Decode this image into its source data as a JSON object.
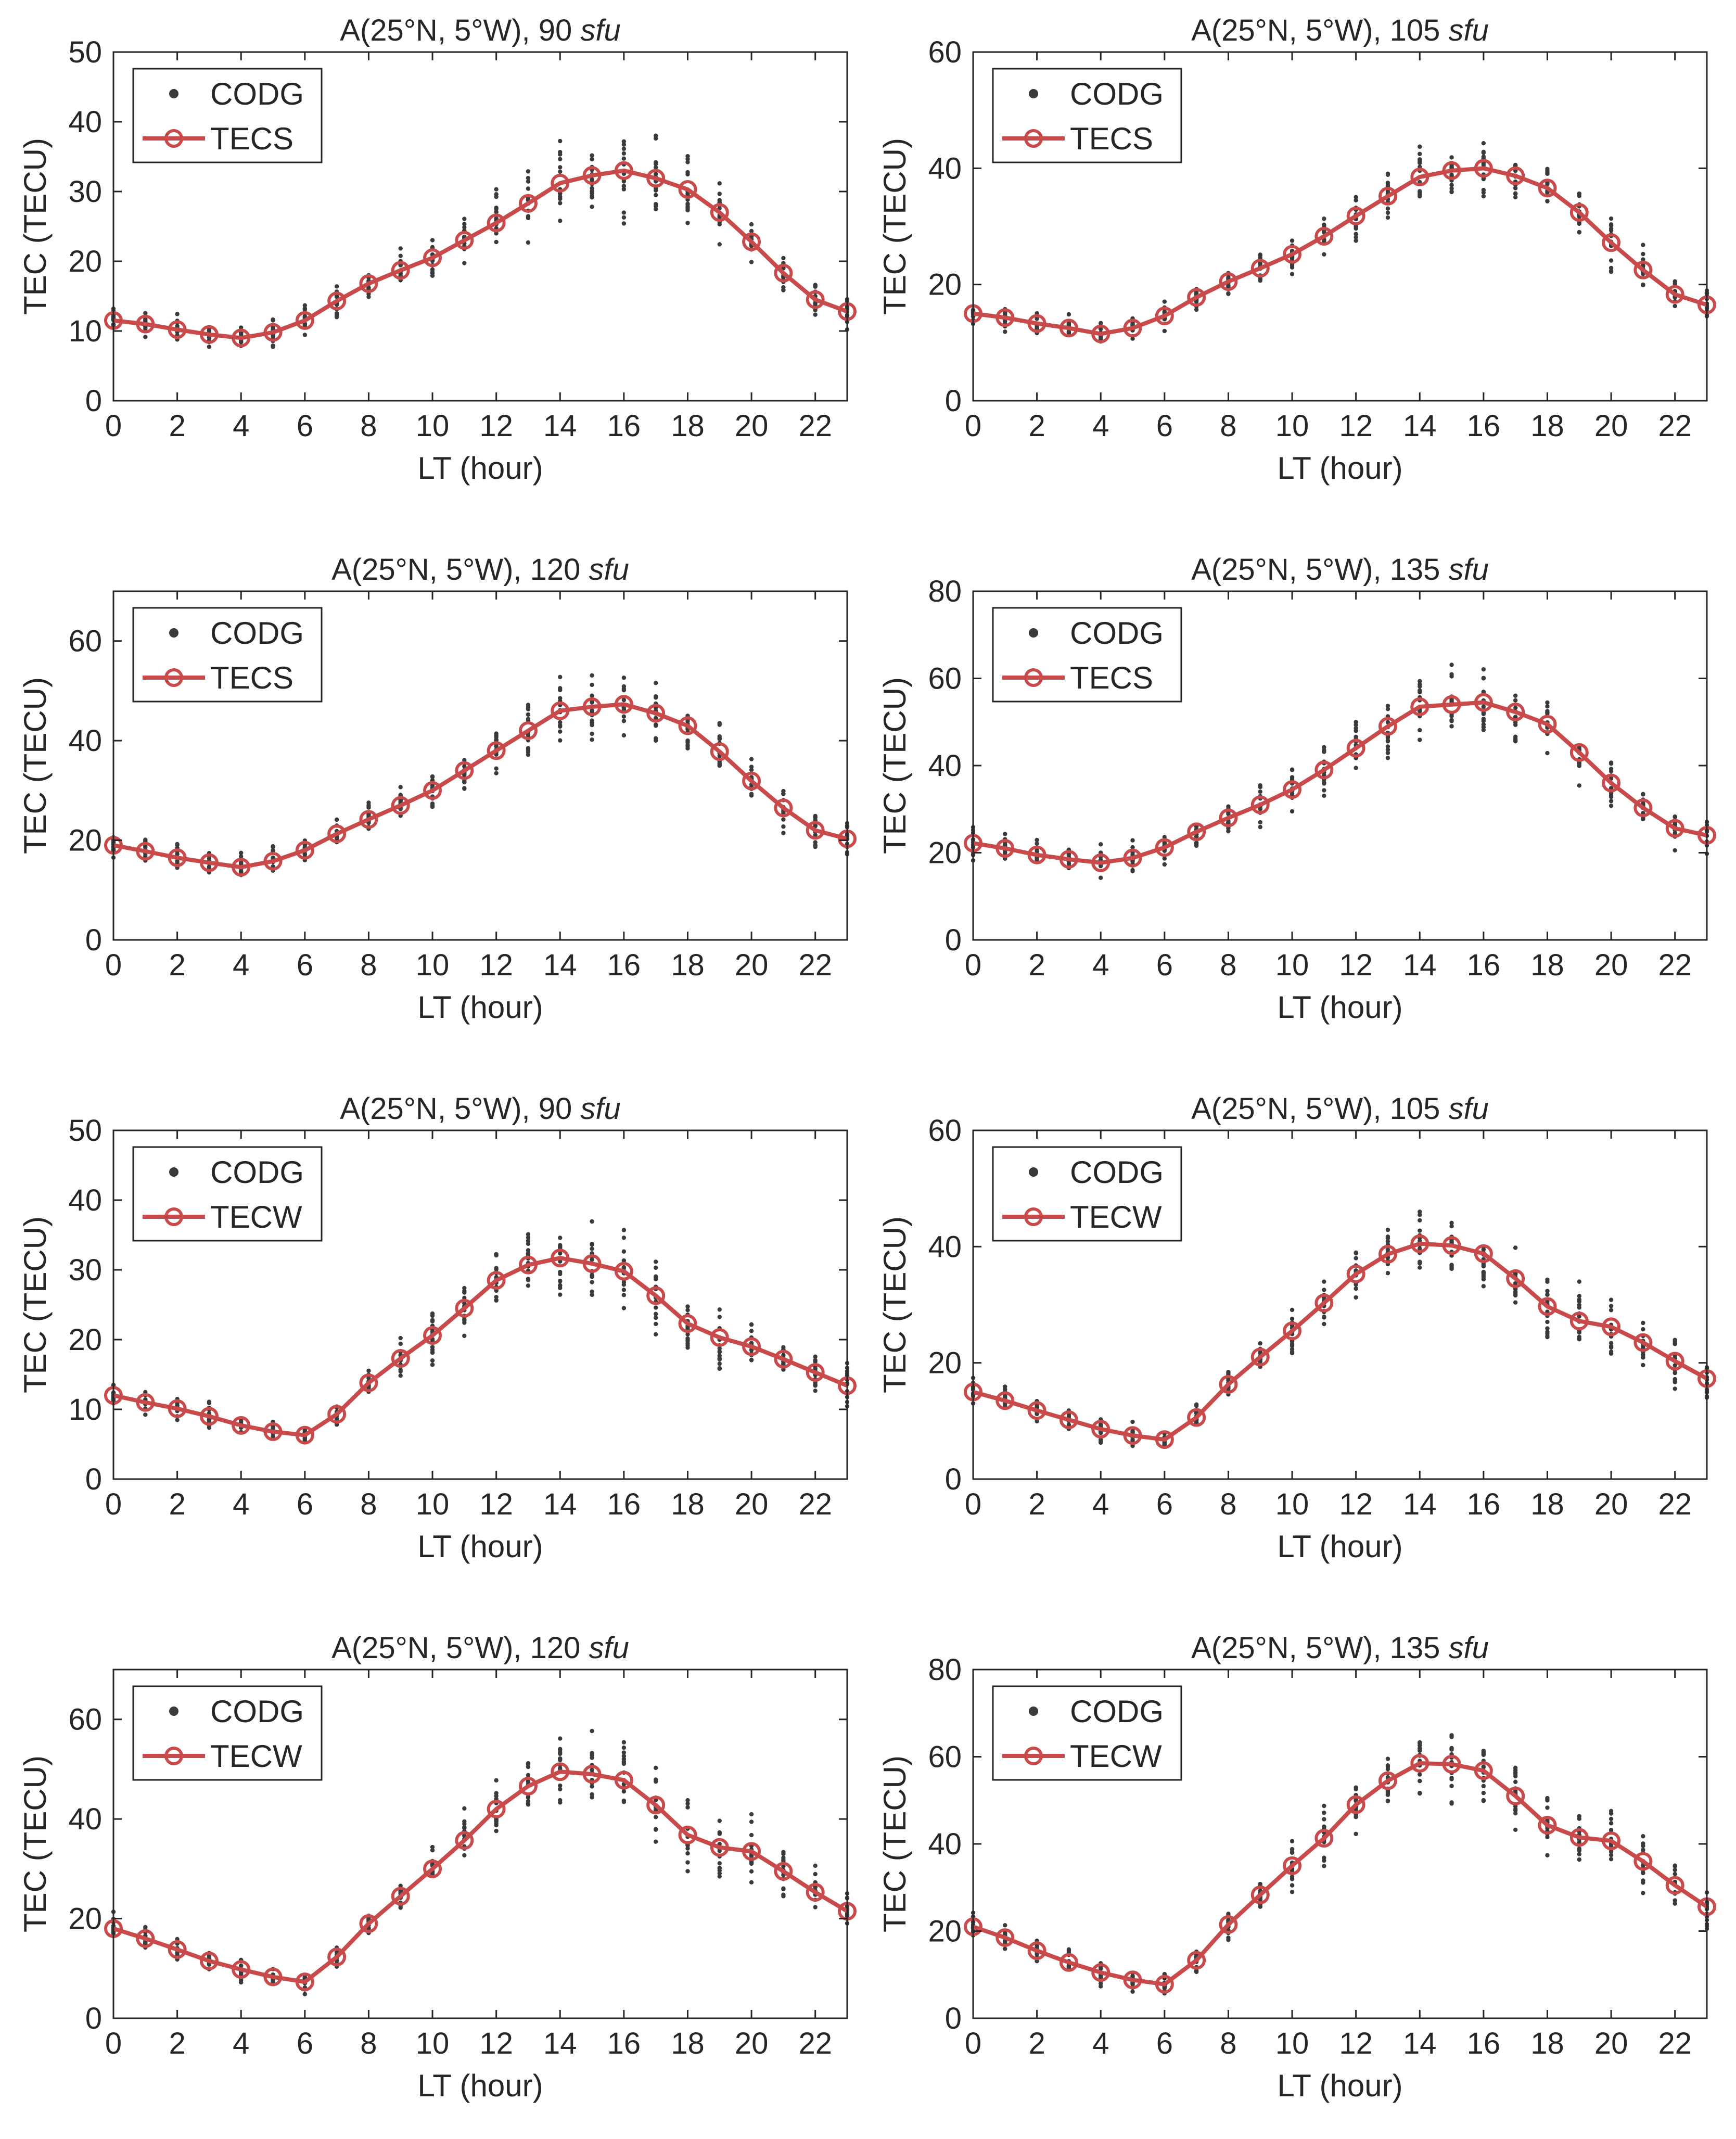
{
  "figure": {
    "name": "tec-diurnal-variation-comparison"
  },
  "chart_data": [
    {
      "type": "line",
      "title": "A(25°N, 5°W), 90 ",
      "title_italic": "sfu",
      "xlabel": "LT (hour)",
      "ylabel": "TEC (TECU)",
      "xlim": [
        0,
        23
      ],
      "ylim": [
        0,
        50
      ],
      "xticks": [
        0,
        2,
        4,
        6,
        8,
        10,
        12,
        14,
        16,
        18,
        20,
        22
      ],
      "yticks": [
        0,
        10,
        20,
        30,
        40,
        50
      ],
      "legend": {
        "location": "top-left",
        "entries": [
          "CODG",
          "TECS"
        ]
      },
      "scatter": {
        "name": "CODG",
        "mean": [
          11.5,
          11,
          10.2,
          9.5,
          9,
          9.8,
          11.5,
          14.3,
          16.8,
          18.7,
          20.5,
          23,
          25.5,
          28.3,
          31.2,
          32.3,
          33,
          31.9,
          30.3,
          27,
          22.8,
          18.3,
          14.5,
          12.8
        ],
        "spread": [
          3,
          3,
          3,
          3,
          3,
          3,
          3,
          3,
          3,
          3.5,
          4,
          5,
          6,
          7,
          8,
          8,
          8,
          8,
          7,
          6,
          5,
          4,
          4,
          3
        ]
      },
      "series": [
        {
          "name": "TECS",
          "x": [
            0,
            1,
            2,
            3,
            4,
            5,
            6,
            7,
            8,
            9,
            10,
            11,
            12,
            13,
            14,
            15,
            16,
            17,
            18,
            19,
            20,
            21,
            22,
            23
          ],
          "values": [
            11.5,
            11,
            10.2,
            9.5,
            9,
            9.8,
            11.5,
            14.3,
            16.8,
            18.7,
            20.5,
            23,
            25.5,
            28.3,
            31.2,
            32.3,
            33,
            31.9,
            30.3,
            27,
            22.8,
            18.3,
            14.5,
            12.8
          ]
        }
      ]
    },
    {
      "type": "line",
      "title": "A(25°N, 5°W), 105 ",
      "title_italic": "sfu",
      "xlabel": "LT (hour)",
      "ylabel": "TEC (TECU)",
      "xlim": [
        0,
        23
      ],
      "ylim": [
        0,
        60
      ],
      "xticks": [
        0,
        2,
        4,
        6,
        8,
        10,
        12,
        14,
        16,
        18,
        20,
        22
      ],
      "yticks": [
        0,
        20,
        40,
        60
      ],
      "legend": {
        "location": "top-left",
        "entries": [
          "CODG",
          "TECS"
        ]
      },
      "scatter": {
        "name": "CODG",
        "mean": [
          15,
          14.3,
          13.3,
          12.5,
          11.5,
          12.5,
          14.6,
          17.8,
          20.5,
          22.8,
          25.2,
          28.3,
          31.8,
          35.2,
          38.5,
          39.6,
          40,
          38.7,
          36.6,
          32.4,
          27.2,
          22.5,
          18.3,
          16.5
        ],
        "spread": [
          3,
          3,
          3,
          3,
          3,
          3,
          3,
          3,
          3,
          4,
          5,
          5,
          6,
          6,
          7,
          6,
          6,
          6,
          6,
          6,
          6,
          5,
          4,
          4
        ]
      },
      "series": [
        {
          "name": "TECS",
          "x": [
            0,
            1,
            2,
            3,
            4,
            5,
            6,
            7,
            8,
            9,
            10,
            11,
            12,
            13,
            14,
            15,
            16,
            17,
            18,
            19,
            20,
            21,
            22,
            23
          ],
          "values": [
            15,
            14.3,
            13.3,
            12.5,
            11.5,
            12.5,
            14.6,
            17.8,
            20.5,
            22.8,
            25.2,
            28.3,
            31.8,
            35.2,
            38.5,
            39.6,
            40,
            38.7,
            36.6,
            32.4,
            27.2,
            22.5,
            18.3,
            16.5
          ]
        }
      ]
    },
    {
      "type": "line",
      "title": "A(25°N, 5°W), 120 ",
      "title_italic": "sfu",
      "xlabel": "LT (hour)",
      "ylabel": "TEC (TECU)",
      "xlim": [
        0,
        23
      ],
      "ylim": [
        0,
        70
      ],
      "xticks": [
        0,
        2,
        4,
        6,
        8,
        10,
        12,
        14,
        16,
        18,
        20,
        22
      ],
      "yticks": [
        0,
        20,
        40,
        60
      ],
      "legend": {
        "location": "top-left",
        "entries": [
          "CODG",
          "TECS"
        ]
      },
      "scatter": {
        "name": "CODG",
        "mean": [
          19,
          17.8,
          16.5,
          15.5,
          14.6,
          15.8,
          18,
          21.3,
          24.2,
          27,
          30,
          34,
          38,
          42,
          46,
          46.8,
          47.3,
          45.5,
          43,
          37.8,
          31.9,
          26.5,
          22,
          20.3
        ],
        "spread": [
          4,
          4,
          4,
          4,
          4,
          4,
          4,
          4,
          4,
          5,
          6,
          7,
          8,
          9,
          10,
          10,
          10,
          10,
          9,
          8,
          7,
          6,
          6,
          5
        ]
      },
      "series": [
        {
          "name": "TECS",
          "x": [
            0,
            1,
            2,
            3,
            4,
            5,
            6,
            7,
            8,
            9,
            10,
            11,
            12,
            13,
            14,
            15,
            16,
            17,
            18,
            19,
            20,
            21,
            22,
            23
          ],
          "values": [
            19,
            17.8,
            16.5,
            15.5,
            14.6,
            15.8,
            18,
            21.3,
            24.2,
            27,
            30,
            34,
            38,
            42,
            46,
            46.8,
            47.3,
            45.5,
            43,
            37.8,
            31.9,
            26.5,
            22,
            20.3
          ]
        }
      ]
    },
    {
      "type": "line",
      "title": "A(25°N, 5°W), 135 ",
      "title_italic": "sfu",
      "xlabel": "LT (hour)",
      "ylabel": "TEC (TECU)",
      "xlim": [
        0,
        23
      ],
      "ylim": [
        0,
        80
      ],
      "xticks": [
        0,
        2,
        4,
        6,
        8,
        10,
        12,
        14,
        16,
        18,
        20,
        22
      ],
      "yticks": [
        0,
        20,
        40,
        60,
        80
      ],
      "legend": {
        "location": "top-left",
        "entries": [
          "CODG",
          "TECS"
        ]
      },
      "scatter": {
        "name": "CODG",
        "mean": [
          22.2,
          21,
          19.5,
          18.5,
          17.7,
          18.8,
          21.2,
          24.8,
          28,
          31,
          34.5,
          39,
          44,
          49,
          53.5,
          54,
          54.5,
          52.3,
          49.5,
          43,
          36,
          30.3,
          25.6,
          24
        ],
        "spread": [
          5,
          5,
          5,
          5,
          5,
          5,
          5,
          5,
          5,
          6,
          7,
          8,
          9,
          10,
          11,
          11,
          11,
          10,
          10,
          9,
          8,
          7,
          6,
          6
        ]
      },
      "series": [
        {
          "name": "TECS",
          "x": [
            0,
            1,
            2,
            3,
            4,
            5,
            6,
            7,
            8,
            9,
            10,
            11,
            12,
            13,
            14,
            15,
            16,
            17,
            18,
            19,
            20,
            21,
            22,
            23
          ],
          "values": [
            22.2,
            21,
            19.5,
            18.5,
            17.7,
            18.8,
            21.2,
            24.8,
            28,
            31,
            34.5,
            39,
            44,
            49,
            53.5,
            54,
            54.5,
            52.3,
            49.5,
            43,
            36,
            30.3,
            25.6,
            24
          ]
        }
      ]
    },
    {
      "type": "line",
      "title": "A(25°N, 5°W), 90 ",
      "title_italic": "sfu",
      "xlabel": "LT (hour)",
      "ylabel": "TEC (TECU)",
      "xlim": [
        0,
        23
      ],
      "ylim": [
        0,
        50
      ],
      "xticks": [
        0,
        2,
        4,
        6,
        8,
        10,
        12,
        14,
        16,
        18,
        20,
        22
      ],
      "yticks": [
        0,
        10,
        20,
        30,
        40,
        50
      ],
      "legend": {
        "location": "top-left",
        "entries": [
          "CODG",
          "TECW"
        ]
      },
      "scatter": {
        "name": "CODG",
        "mean": [
          12,
          11,
          10.1,
          9,
          7.7,
          6.8,
          6.3,
          9.3,
          13.8,
          17.3,
          20.6,
          24.5,
          28.5,
          30.7,
          31.7,
          30.9,
          29.8,
          26.3,
          22.3,
          20.3,
          19,
          17.2,
          15.3,
          13.4
        ],
        "spread": [
          2.5,
          2.5,
          2.5,
          2.5,
          2,
          2,
          2,
          2.5,
          3,
          4,
          5,
          6,
          7,
          7,
          8,
          8,
          8,
          8,
          8,
          7,
          6,
          5,
          4,
          4
        ]
      },
      "series": [
        {
          "name": "TECW",
          "x": [
            0,
            1,
            2,
            3,
            4,
            5,
            6,
            7,
            8,
            9,
            10,
            11,
            12,
            13,
            14,
            15,
            16,
            17,
            18,
            19,
            20,
            21,
            22,
            23
          ],
          "values": [
            12,
            11,
            10.1,
            9,
            7.7,
            6.8,
            6.3,
            9.3,
            13.8,
            17.3,
            20.6,
            24.5,
            28.5,
            30.7,
            31.7,
            30.9,
            29.8,
            26.3,
            22.3,
            20.3,
            19,
            17.2,
            15.3,
            13.4
          ]
        }
      ]
    },
    {
      "type": "line",
      "title": "A(25°N, 5°W), 105 ",
      "title_italic": "sfu",
      "xlabel": "LT (hour)",
      "ylabel": "TEC (TECU)",
      "xlim": [
        0,
        23
      ],
      "ylim": [
        0,
        60
      ],
      "xticks": [
        0,
        2,
        4,
        6,
        8,
        10,
        12,
        14,
        16,
        18,
        20,
        22
      ],
      "yticks": [
        0,
        20,
        40,
        60
      ],
      "legend": {
        "location": "top-left",
        "entries": [
          "CODG",
          "TECW"
        ]
      },
      "scatter": {
        "name": "CODG",
        "mean": [
          15,
          13.5,
          11.8,
          10.2,
          8.6,
          7.5,
          6.8,
          10.6,
          16.3,
          21,
          25.5,
          30.3,
          35.3,
          38.7,
          40.5,
          40.2,
          38.8,
          34.5,
          29.7,
          27.2,
          26.2,
          23.5,
          20.3,
          17.3
        ],
        "spread": [
          3,
          3,
          3,
          3,
          3,
          3,
          3,
          3,
          3,
          4,
          5,
          6,
          7,
          7,
          7,
          7,
          7,
          7,
          8,
          8,
          8,
          8,
          7,
          6
        ]
      },
      "series": [
        {
          "name": "TECW",
          "x": [
            0,
            1,
            2,
            3,
            4,
            5,
            6,
            7,
            8,
            9,
            10,
            11,
            12,
            13,
            14,
            15,
            16,
            17,
            18,
            19,
            20,
            21,
            22,
            23
          ],
          "values": [
            15,
            13.5,
            11.8,
            10.2,
            8.6,
            7.5,
            6.8,
            10.6,
            16.3,
            21,
            25.5,
            30.3,
            35.3,
            38.7,
            40.5,
            40.2,
            38.8,
            34.5,
            29.7,
            27.2,
            26.2,
            23.5,
            20.3,
            17.3
          ]
        }
      ]
    },
    {
      "type": "line",
      "title": "A(25°N, 5°W), 120 ",
      "title_italic": "sfu",
      "xlabel": "LT (hour)",
      "ylabel": "TEC (TECU)",
      "xlim": [
        0,
        23
      ],
      "ylim": [
        0,
        70
      ],
      "xticks": [
        0,
        2,
        4,
        6,
        8,
        10,
        12,
        14,
        16,
        18,
        20,
        22
      ],
      "yticks": [
        0,
        20,
        40,
        60
      ],
      "legend": {
        "location": "top-left",
        "entries": [
          "CODG",
          "TECW"
        ]
      },
      "scatter": {
        "name": "CODG",
        "mean": [
          18,
          16,
          13.8,
          11.5,
          9.8,
          8.3,
          7.3,
          12.3,
          19,
          24.5,
          30,
          35.7,
          42,
          46.6,
          49.5,
          49,
          47.8,
          42.8,
          36.8,
          34.3,
          33.5,
          29.5,
          25.3,
          21.5
        ],
        "spread": [
          4,
          4,
          4,
          3.5,
          3.5,
          3,
          3,
          3.5,
          4,
          5,
          6,
          8,
          9,
          10,
          10,
          10,
          10,
          10,
          10,
          10,
          9,
          8,
          7,
          6
        ]
      },
      "series": [
        {
          "name": "TECW",
          "x": [
            0,
            1,
            2,
            3,
            4,
            5,
            6,
            7,
            8,
            9,
            10,
            11,
            12,
            13,
            14,
            15,
            16,
            17,
            18,
            19,
            20,
            21,
            22,
            23
          ],
          "values": [
            18,
            16,
            13.8,
            11.5,
            9.8,
            8.3,
            7.3,
            12.3,
            19,
            24.5,
            30,
            35.7,
            42,
            46.6,
            49.5,
            49,
            47.8,
            42.8,
            36.8,
            34.3,
            33.5,
            29.5,
            25.3,
            21.5
          ]
        }
      ]
    },
    {
      "type": "line",
      "title": "A(25°N, 5°W), 135 ",
      "title_italic": "sfu",
      "xlabel": "LT (hour)",
      "ylabel": "TEC (TECU)",
      "xlim": [
        0,
        23
      ],
      "ylim": [
        0,
        80
      ],
      "xticks": [
        0,
        2,
        4,
        6,
        8,
        10,
        12,
        14,
        16,
        18,
        20,
        22
      ],
      "yticks": [
        0,
        20,
        40,
        60,
        80
      ],
      "legend": {
        "location": "top-left",
        "entries": [
          "CODG",
          "TECW"
        ]
      },
      "scatter": {
        "name": "CODG",
        "mean": [
          21,
          18.5,
          15.5,
          12.8,
          10.5,
          8.8,
          7.8,
          13.3,
          21.5,
          28.3,
          35,
          41.3,
          49,
          54.5,
          58.5,
          58.3,
          56.8,
          51,
          44.3,
          41.5,
          40.7,
          36,
          30.5,
          25.6
        ],
        "spread": [
          5,
          5,
          4.5,
          4,
          4,
          3.5,
          3.5,
          4,
          5,
          6,
          8,
          9,
          10,
          11,
          12,
          12,
          11,
          11,
          11,
          11,
          10,
          9,
          8,
          7
        ]
      },
      "series": [
        {
          "name": "TECW",
          "x": [
            0,
            1,
            2,
            3,
            4,
            5,
            6,
            7,
            8,
            9,
            10,
            11,
            12,
            13,
            14,
            15,
            16,
            17,
            18,
            19,
            20,
            21,
            22,
            23
          ],
          "values": [
            21,
            18.5,
            15.5,
            12.8,
            10.5,
            8.8,
            7.8,
            13.3,
            21.5,
            28.3,
            35,
            41.3,
            49,
            54.5,
            58.5,
            58.3,
            56.8,
            51,
            44.3,
            41.5,
            40.7,
            36,
            30.5,
            25.6
          ]
        }
      ]
    }
  ]
}
